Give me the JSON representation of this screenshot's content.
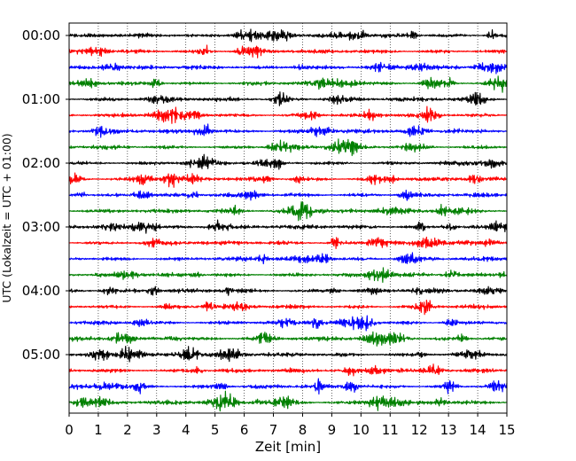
{
  "chart_data": {
    "type": "line",
    "title": "",
    "xlabel": "Zeit  [min]",
    "ylabel": "UTC (Lokalzeit = UTC + 01:00)",
    "xlim": [
      0,
      15
    ],
    "x_ticks": [
      "0",
      "1",
      "2",
      "3",
      "4",
      "5",
      "6",
      "7",
      "8",
      "9",
      "10",
      "11",
      "12",
      "13",
      "14",
      "15"
    ],
    "y_tick_labels": [
      "00:00",
      "01:00",
      "02:00",
      "03:00",
      "04:00",
      "05:00"
    ],
    "trace_interval_minutes": 15,
    "trace_count": 24,
    "trace_start": "00:00",
    "trace_end": "05:45",
    "grid": "vertical dotted at each minute",
    "legend": "none",
    "colors_cycle": [
      "#000000",
      "#ff0000",
      "#0000ff",
      "#008000"
    ]
  }
}
